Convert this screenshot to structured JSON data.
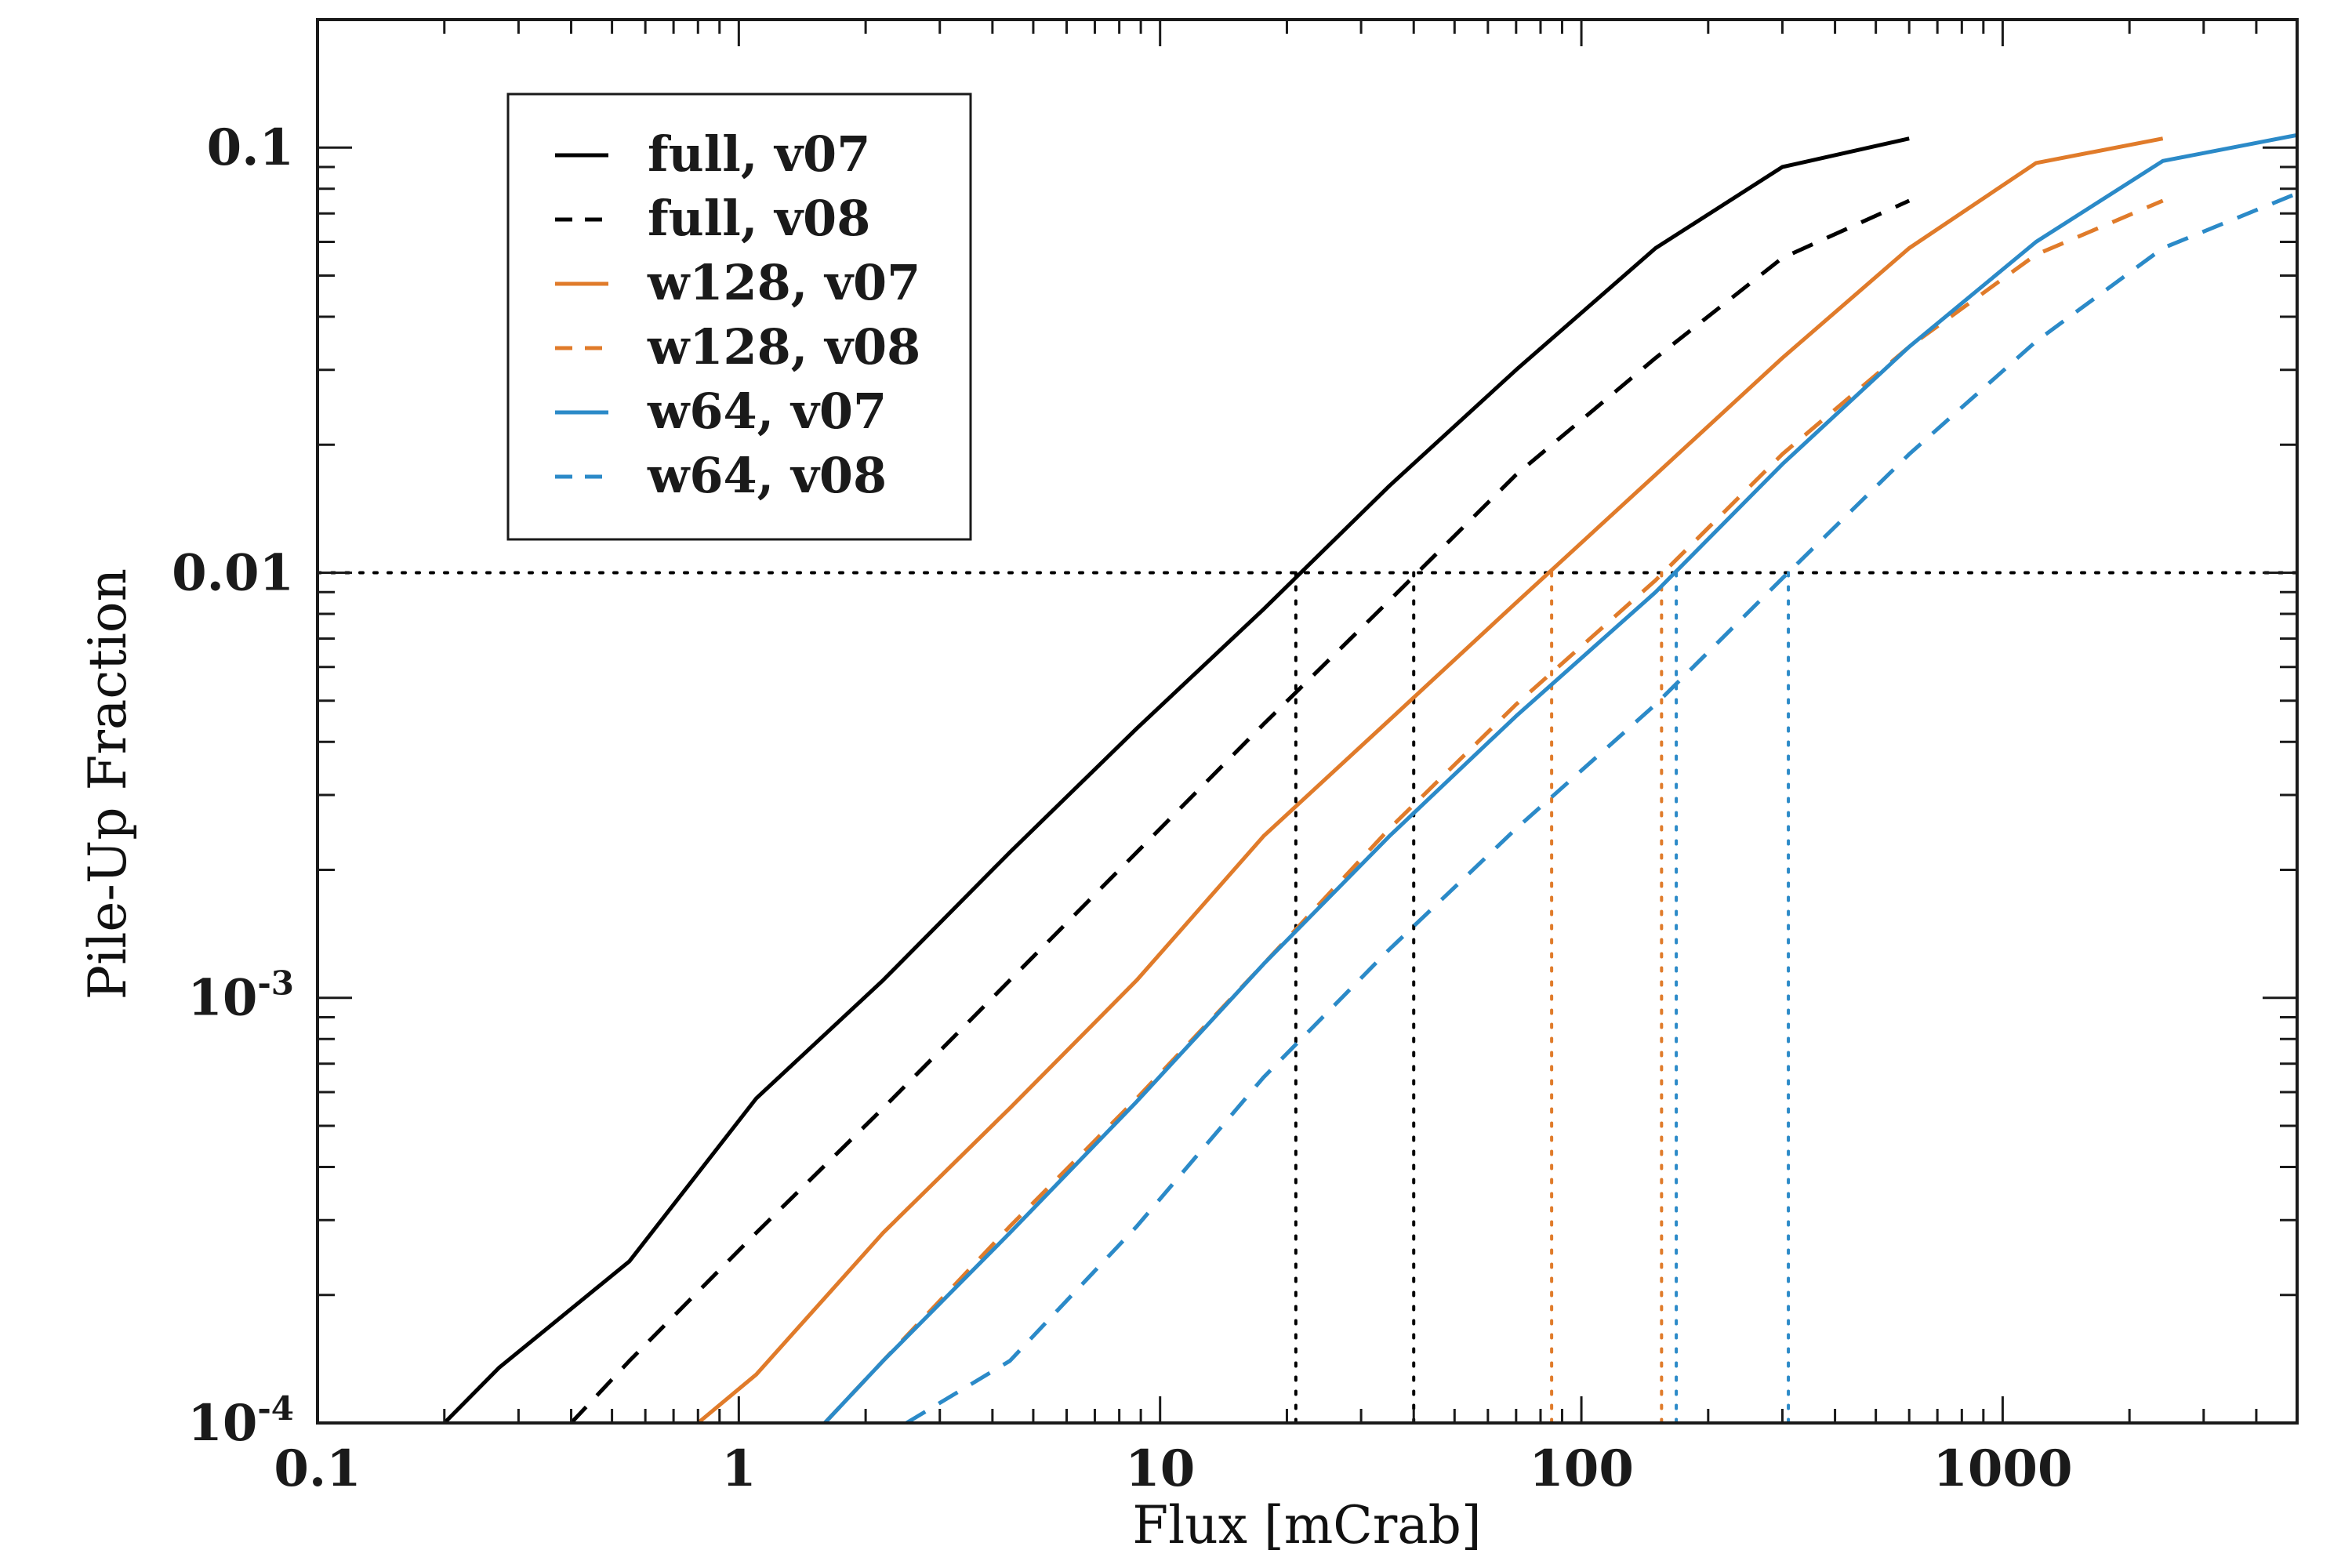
{
  "chart_data": {
    "type": "line",
    "xscale": "log",
    "yscale": "log",
    "xlabel": "Flux [mCrab]",
    "ylabel": "Pile-Up Fraction",
    "xlim": [
      0.1,
      5000
    ],
    "ylim": [
      0.0001,
      0.2
    ],
    "x_ticks": [
      {
        "value": 0.1,
        "label": "0.1"
      },
      {
        "value": 1,
        "label": "1"
      },
      {
        "value": 10,
        "label": "10"
      },
      {
        "value": 100,
        "label": "100"
      },
      {
        "value": 1000,
        "label": "1000"
      }
    ],
    "y_ticks": [
      {
        "value": 0.1,
        "label": "0.1",
        "sup": ""
      },
      {
        "value": 0.01,
        "label": "0.01",
        "sup": ""
      },
      {
        "value": 0.001,
        "label": "10",
        "sup": "-3"
      },
      {
        "value": 0.0001,
        "label": "10",
        "sup": "-4"
      }
    ],
    "legend_position": "top-left",
    "reference_line": {
      "y": 0.01,
      "style": "dotted",
      "color": "#000000"
    },
    "series": [
      {
        "name": "full, v07",
        "color": "#000000",
        "dash": "solid",
        "x": [
          0.2,
          0.27,
          0.55,
          1.1,
          2.2,
          4.4,
          8.8,
          17.6,
          35,
          70,
          150,
          300,
          600
        ],
        "y": [
          0.0001,
          0.000135,
          0.00024,
          0.00058,
          0.0011,
          0.0022,
          0.0043,
          0.0082,
          0.016,
          0.03,
          0.058,
          0.09,
          0.105
        ]
      },
      {
        "name": "full, v08",
        "color": "#000000",
        "dash": "dashed",
        "x": [
          0.4,
          0.55,
          1.1,
          2.2,
          4.4,
          8.8,
          17.6,
          35,
          70,
          150,
          300,
          600
        ],
        "y": [
          0.0001,
          0.00014,
          0.00028,
          0.00055,
          0.0011,
          0.0022,
          0.0044,
          0.0086,
          0.017,
          0.032,
          0.055,
          0.075
        ]
      },
      {
        "name": "w128, v07",
        "color": "#e07b2a",
        "dash": "solid",
        "x": [
          0.8,
          1.1,
          2.2,
          4.4,
          8.8,
          17.6,
          35,
          70,
          150,
          300,
          600,
          1200,
          2400
        ],
        "y": [
          0.0001,
          0.00013,
          0.00028,
          0.00055,
          0.0011,
          0.0024,
          0.0045,
          0.0085,
          0.017,
          0.032,
          0.058,
          0.092,
          0.105
        ]
      },
      {
        "name": "w128, v08",
        "color": "#e07b2a",
        "dash": "dashed",
        "x": [
          1.6,
          2.2,
          4.4,
          8.8,
          17.6,
          35,
          70,
          150,
          300,
          600,
          1200,
          2400
        ],
        "y": [
          0.0001,
          0.00014,
          0.00029,
          0.00058,
          0.0012,
          0.0025,
          0.0049,
          0.0096,
          0.019,
          0.034,
          0.056,
          0.075
        ]
      },
      {
        "name": "w64, v07",
        "color": "#2b8ac8",
        "dash": "solid",
        "x": [
          1.6,
          2.2,
          4.4,
          8.8,
          17.6,
          35,
          70,
          150,
          300,
          600,
          1200,
          2400,
          5000
        ],
        "y": [
          0.0001,
          0.00014,
          0.00028,
          0.00057,
          0.0012,
          0.0024,
          0.0046,
          0.009,
          0.018,
          0.034,
          0.06,
          0.093,
          0.107
        ]
      },
      {
        "name": "w64, v08",
        "color": "#2b8ac8",
        "dash": "dashed",
        "x": [
          2.5,
          4.4,
          8.8,
          17.6,
          35,
          70,
          150,
          300,
          600,
          1200,
          2400,
          5000
        ],
        "y": [
          0.0001,
          0.00014,
          0.00029,
          0.00065,
          0.0013,
          0.0025,
          0.0049,
          0.0097,
          0.019,
          0.035,
          0.058,
          0.078
        ]
      }
    ],
    "threshold_markers": [
      {
        "x": 21,
        "color": "#000000"
      },
      {
        "x": 40,
        "color": "#000000"
      },
      {
        "x": 85,
        "color": "#e07b2a"
      },
      {
        "x": 155,
        "color": "#e07b2a"
      },
      {
        "x": 168,
        "color": "#2b8ac8"
      },
      {
        "x": 310,
        "color": "#2b8ac8"
      }
    ]
  }
}
